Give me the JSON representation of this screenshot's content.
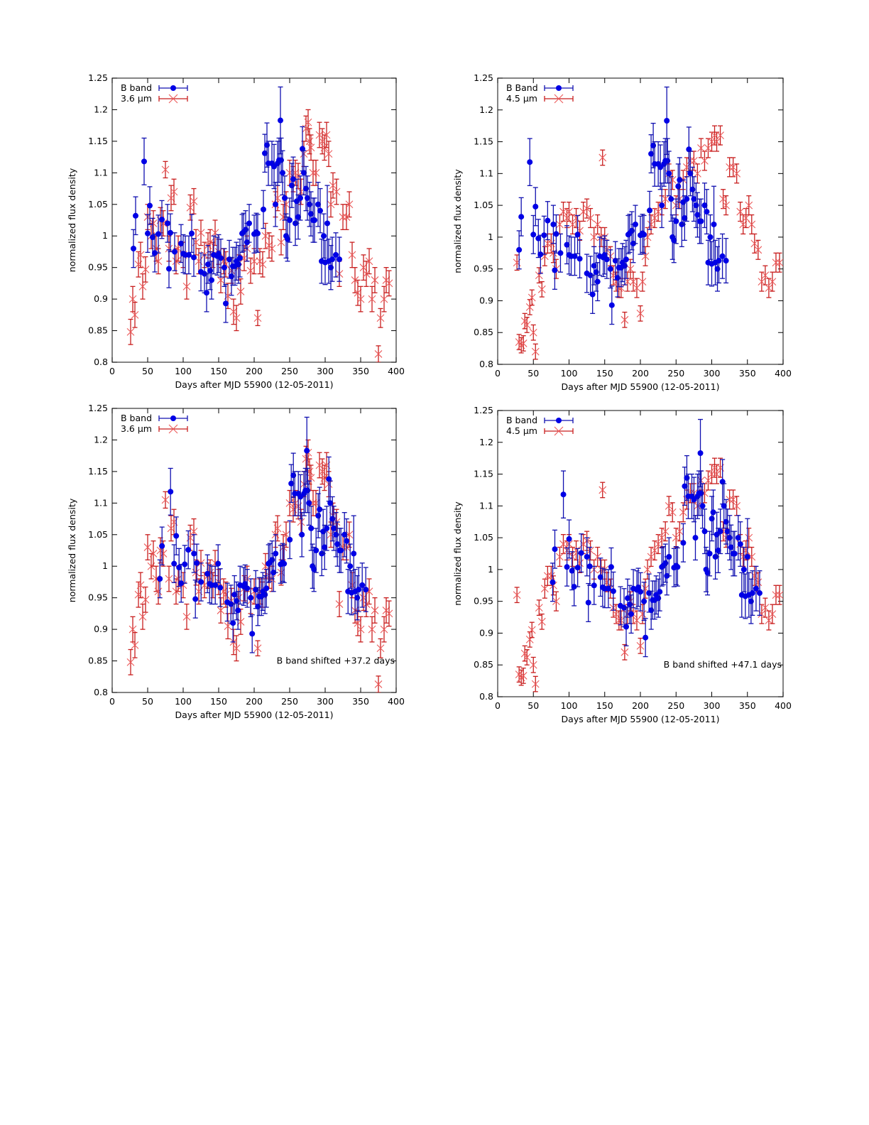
{
  "chart_data": [
    {
      "type": "scatter",
      "panel": "top-left",
      "xlabel": "Days after MJD 55900 (12-05-2011)",
      "ylabel": "normalized flux density",
      "xlim": [
        0,
        400
      ],
      "ylim": [
        0.8,
        1.25
      ],
      "xticks": [
        "0",
        "50",
        "100",
        "150",
        "200",
        "250",
        "300",
        "350",
        "400"
      ],
      "yticks": [
        "0.8",
        "0.85",
        "0.9",
        "0.95",
        "1",
        "1.05",
        "1.1",
        "1.15",
        "1.2",
        "1.25"
      ],
      "legend_position": "top-left",
      "annotation": "",
      "b_shift_days": 0,
      "series": [
        {
          "name": "B band",
          "ref": "b_band",
          "color": "#0000e6",
          "marker": "circle"
        },
        {
          "name": "3.6 µm",
          "ref": "ir36",
          "color": "#d62020",
          "marker": "x"
        }
      ]
    },
    {
      "type": "scatter",
      "panel": "top-right",
      "xlabel": "Days after MJD 55900 (12-05-2011)",
      "ylabel": "normalized flux density",
      "xlim": [
        0,
        400
      ],
      "ylim": [
        0.8,
        1.25
      ],
      "xticks": [
        "0",
        "50",
        "100",
        "150",
        "200",
        "250",
        "300",
        "350",
        "400"
      ],
      "yticks": [
        "0.8",
        "0.85",
        "0.9",
        "0.95",
        "1",
        "1.05",
        "1.1",
        "1.15",
        "1.2",
        "1.25"
      ],
      "legend_position": "top-left",
      "annotation": "",
      "b_shift_days": 0,
      "series": [
        {
          "name": "B Band",
          "ref": "b_band",
          "color": "#0000e6",
          "marker": "circle"
        },
        {
          "name": "4.5 µm",
          "ref": "ir45",
          "color": "#d62020",
          "marker": "x"
        }
      ]
    },
    {
      "type": "scatter",
      "panel": "bottom-left",
      "xlabel": "Days after MJD 55900 (12-05-2011)",
      "ylabel": "normalized flux density",
      "xlim": [
        0,
        400
      ],
      "ylim": [
        0.8,
        1.25
      ],
      "xticks": [
        "0",
        "50",
        "100",
        "150",
        "200",
        "250",
        "300",
        "350",
        "400"
      ],
      "yticks": [
        "0.8",
        "0.85",
        "0.9",
        "0.95",
        "1",
        "1.05",
        "1.1",
        "1.15",
        "1.2",
        "1.25"
      ],
      "legend_position": "top-left",
      "annotation": "B band shifted +37.2 days",
      "b_shift_days": 37.2,
      "series": [
        {
          "name": "B band",
          "ref": "b_band",
          "color": "#0000e6",
          "marker": "circle"
        },
        {
          "name": "3.6 µm",
          "ref": "ir36",
          "color": "#d62020",
          "marker": "x"
        }
      ]
    },
    {
      "type": "scatter",
      "panel": "bottom-right",
      "xlabel": "Days after MJD 55900 (12-05-2011)",
      "ylabel": "normalized flux density",
      "xlim": [
        0,
        400
      ],
      "ylim": [
        0.8,
        1.25
      ],
      "xticks": [
        "0",
        "50",
        "100",
        "150",
        "200",
        "250",
        "300",
        "350",
        "400"
      ],
      "yticks": [
        "0.8",
        "0.85",
        "0.9",
        "0.95",
        "1",
        "1.05",
        "1.1",
        "1.15",
        "1.2",
        "1.25"
      ],
      "legend_position": "top-left",
      "annotation": "B band shifted +47.1 days",
      "b_shift_days": 47.1,
      "series": [
        {
          "name": "B band",
          "ref": "b_band",
          "color": "#0000e6",
          "marker": "circle"
        },
        {
          "name": "4.5 µm",
          "ref": "ir45",
          "color": "#d62020",
          "marker": "x"
        }
      ]
    }
  ],
  "series_values": {
    "b_band": {
      "x": [
        30,
        33,
        45,
        50,
        53,
        57,
        60,
        65,
        70,
        78,
        80,
        82,
        88,
        97,
        100,
        103,
        108,
        112,
        115,
        125,
        130,
        133,
        135,
        138,
        140,
        143,
        148,
        150,
        153,
        158,
        160,
        165,
        168,
        170,
        173,
        175,
        178,
        180,
        183,
        185,
        188,
        190,
        193,
        200,
        203,
        205,
        213,
        215,
        218,
        220,
        225,
        228,
        230,
        233,
        235,
        237,
        238,
        240,
        243,
        245,
        247,
        250,
        253,
        255,
        258,
        260,
        262,
        265,
        268,
        270,
        273,
        275,
        278,
        280,
        283,
        285,
        290,
        293,
        295,
        298,
        300,
        303,
        305,
        308,
        310,
        315,
        320
      ],
      "y": [
        0.98,
        1.032,
        1.118,
        1.004,
        1.048,
        0.998,
        0.973,
        1.003,
        1.026,
        1.02,
        0.948,
        1.005,
        0.975,
        0.988,
        0.972,
        0.97,
        0.97,
        1.004,
        0.966,
        0.943,
        0.94,
        0.91,
        0.955,
        0.945,
        0.93,
        0.97,
        0.968,
        0.972,
        0.965,
        0.95,
        0.893,
        0.963,
        0.936,
        0.952,
        0.952,
        0.96,
        0.955,
        0.965,
        1.004,
        1.006,
        1.01,
        0.99,
        1.02,
        1.003,
        1.006,
        1.004,
        1.042,
        1.131,
        1.144,
        1.115,
        1.115,
        1.11,
        1.05,
        1.115,
        1.12,
        1.183,
        1.12,
        1.1,
        1.06,
        1.0,
        0.995,
        1.025,
        1.08,
        1.09,
        1.02,
        1.055,
        1.03,
        1.06,
        1.138,
        1.1,
        1.075,
        1.06,
        1.05,
        1.035,
        1.025,
        1.025,
        1.05,
        1.04,
        0.96,
        1.0,
        0.958,
        1.02,
        0.96,
        0.95,
        0.963,
        0.97,
        0.963
      ],
      "err": [
        0.03,
        0.03,
        0.037,
        0.03,
        0.03,
        0.03,
        0.03,
        0.03,
        0.03,
        0.03,
        0.03,
        0.03,
        0.03,
        0.03,
        0.03,
        0.03,
        0.03,
        0.03,
        0.03,
        0.03,
        0.03,
        0.03,
        0.03,
        0.03,
        0.03,
        0.03,
        0.03,
        0.03,
        0.03,
        0.03,
        0.03,
        0.03,
        0.03,
        0.03,
        0.03,
        0.03,
        0.03,
        0.03,
        0.03,
        0.03,
        0.03,
        0.03,
        0.03,
        0.03,
        0.03,
        0.03,
        0.03,
        0.03,
        0.035,
        0.035,
        0.035,
        0.035,
        0.035,
        0.035,
        0.035,
        0.053,
        0.035,
        0.035,
        0.035,
        0.035,
        0.035,
        0.035,
        0.035,
        0.035,
        0.035,
        0.035,
        0.035,
        0.035,
        0.035,
        0.035,
        0.035,
        0.035,
        0.035,
        0.035,
        0.035,
        0.035,
        0.035,
        0.035,
        0.035,
        0.035,
        0.035,
        0.06,
        0.035,
        0.035,
        0.035,
        0.035,
        0.035
      ]
    },
    "ir36": {
      "x": [
        26,
        29,
        32,
        37,
        40,
        43,
        47,
        50,
        55,
        58,
        62,
        65,
        68,
        72,
        75,
        80,
        83,
        87,
        90,
        93,
        100,
        105,
        110,
        115,
        118,
        122,
        125,
        130,
        135,
        138,
        142,
        145,
        150,
        153,
        157,
        160,
        163,
        168,
        171,
        175,
        178,
        181,
        186,
        190,
        195,
        200,
        205,
        208,
        212,
        216,
        221,
        225,
        230,
        233,
        238,
        241,
        245,
        250,
        255,
        258,
        262,
        266,
        270,
        273,
        276,
        278,
        280,
        283,
        287,
        292,
        296,
        299,
        302,
        305,
        308,
        311,
        316,
        320,
        325,
        330,
        334,
        338,
        342,
        346,
        350,
        354,
        358,
        362,
        366,
        370,
        375,
        378,
        383,
        386,
        390
      ],
      "y": [
        0.848,
        0.9,
        0.875,
        0.955,
        0.97,
        0.92,
        0.947,
        1.03,
        1.0,
        1.02,
        0.98,
        0.96,
        1.025,
        1.02,
        1.105,
        0.98,
        1.06,
        1.07,
        0.96,
        0.98,
        0.97,
        0.92,
        1.045,
        1.055,
        0.99,
        0.96,
        1.005,
        0.97,
        0.985,
        0.99,
        0.97,
        1.005,
        0.975,
        0.93,
        0.96,
        0.955,
        0.905,
        0.945,
        0.88,
        0.87,
        0.95,
        0.912,
        0.965,
        0.98,
        0.945,
        0.96,
        0.87,
        0.96,
        0.955,
        1.0,
        0.985,
        0.98,
        1.05,
        1.06,
        0.99,
        1.03,
        1.05,
        1.1,
        1.09,
        1.1,
        1.095,
        1.07,
        1.13,
        1.17,
        1.18,
        1.15,
        1.14,
        1.1,
        1.1,
        1.16,
        1.15,
        1.14,
        1.16,
        1.13,
        1.05,
        1.08,
        1.07,
        0.94,
        1.03,
        1.03,
        1.05,
        0.97,
        0.93,
        0.91,
        0.9,
        0.95,
        0.94,
        0.96,
        0.9,
        0.93,
        0.813,
        0.87,
        0.9,
        0.93,
        0.925
      ],
      "err": [
        0.02,
        0.02,
        0.02,
        0.02,
        0.02,
        0.02,
        0.02,
        0.02,
        0.02,
        0.02,
        0.02,
        0.02,
        0.02,
        0.02,
        0.013,
        0.02,
        0.02,
        0.02,
        0.02,
        0.02,
        0.02,
        0.02,
        0.02,
        0.02,
        0.02,
        0.02,
        0.02,
        0.02,
        0.02,
        0.02,
        0.02,
        0.02,
        0.02,
        0.02,
        0.02,
        0.02,
        0.02,
        0.02,
        0.02,
        0.02,
        0.02,
        0.02,
        0.02,
        0.02,
        0.02,
        0.02,
        0.012,
        0.02,
        0.02,
        0.02,
        0.02,
        0.02,
        0.02,
        0.02,
        0.02,
        0.02,
        0.02,
        0.02,
        0.02,
        0.02,
        0.02,
        0.02,
        0.02,
        0.02,
        0.02,
        0.02,
        0.02,
        0.02,
        0.02,
        0.02,
        0.02,
        0.02,
        0.02,
        0.02,
        0.02,
        0.02,
        0.02,
        0.02,
        0.02,
        0.02,
        0.02,
        0.02,
        0.02,
        0.02,
        0.02,
        0.02,
        0.02,
        0.02,
        0.02,
        0.02,
        0.013,
        0.015,
        0.02,
        0.02,
        0.02
      ]
    },
    "ir45": {
      "x": [
        27,
        30,
        33,
        36,
        38,
        41,
        45,
        48,
        50,
        53,
        58,
        62,
        66,
        70,
        75,
        78,
        82,
        87,
        92,
        97,
        100,
        105,
        110,
        115,
        120,
        125,
        130,
        135,
        140,
        145,
        147,
        150,
        153,
        158,
        162,
        166,
        170,
        173,
        178,
        182,
        186,
        190,
        195,
        200,
        203,
        207,
        210,
        215,
        220,
        225,
        230,
        235,
        240,
        245,
        250,
        255,
        260,
        265,
        270,
        275,
        280,
        285,
        290,
        295,
        300,
        304,
        307,
        312,
        316,
        320,
        325,
        330,
        335,
        340,
        344,
        348,
        352,
        356,
        360,
        365,
        370,
        375,
        380,
        385,
        390,
        395
      ],
      "y": [
        0.96,
        0.835,
        0.83,
        0.833,
        0.868,
        0.862,
        0.89,
        0.905,
        0.85,
        0.82,
        0.94,
        0.918,
        0.97,
        0.99,
        0.99,
        0.975,
        0.95,
        1.02,
        1.04,
        1.03,
        1.04,
        1.02,
        1.03,
        1.01,
        1.04,
        1.045,
        1.03,
        1.0,
        1.02,
        1.0,
        1.125,
        1.0,
        0.98,
        0.97,
        0.94,
        0.93,
        0.92,
        0.92,
        0.87,
        0.93,
        0.95,
        0.93,
        0.92,
        0.88,
        0.93,
        0.97,
        1.0,
        1.02,
        1.03,
        1.04,
        1.05,
        1.06,
        1.1,
        1.09,
        1.05,
        1.06,
        1.09,
        1.11,
        1.12,
        1.12,
        1.1,
        1.14,
        1.12,
        1.14,
        1.15,
        1.16,
        1.15,
        1.16,
        1.06,
        1.05,
        1.11,
        1.11,
        1.1,
        1.04,
        1.02,
        1.03,
        1.05,
        1.02,
        0.99,
        0.98,
        0.93,
        0.94,
        0.92,
        0.93,
        0.96,
        0.96
      ],
      "err": [
        0.012,
        0.012,
        0.012,
        0.012,
        0.012,
        0.012,
        0.012,
        0.012,
        0.012,
        0.012,
        0.012,
        0.012,
        0.015,
        0.015,
        0.015,
        0.015,
        0.015,
        0.015,
        0.015,
        0.015,
        0.015,
        0.015,
        0.015,
        0.015,
        0.015,
        0.015,
        0.015,
        0.015,
        0.015,
        0.015,
        0.012,
        0.015,
        0.015,
        0.015,
        0.015,
        0.015,
        0.015,
        0.015,
        0.012,
        0.015,
        0.015,
        0.015,
        0.015,
        0.012,
        0.015,
        0.015,
        0.015,
        0.015,
        0.015,
        0.015,
        0.015,
        0.015,
        0.015,
        0.015,
        0.015,
        0.015,
        0.015,
        0.015,
        0.015,
        0.015,
        0.015,
        0.015,
        0.015,
        0.015,
        0.015,
        0.015,
        0.015,
        0.015,
        0.015,
        0.015,
        0.015,
        0.015,
        0.015,
        0.015,
        0.015,
        0.015,
        0.015,
        0.015,
        0.015,
        0.015,
        0.015,
        0.015,
        0.015,
        0.015,
        0.015,
        0.015
      ]
    }
  }
}
